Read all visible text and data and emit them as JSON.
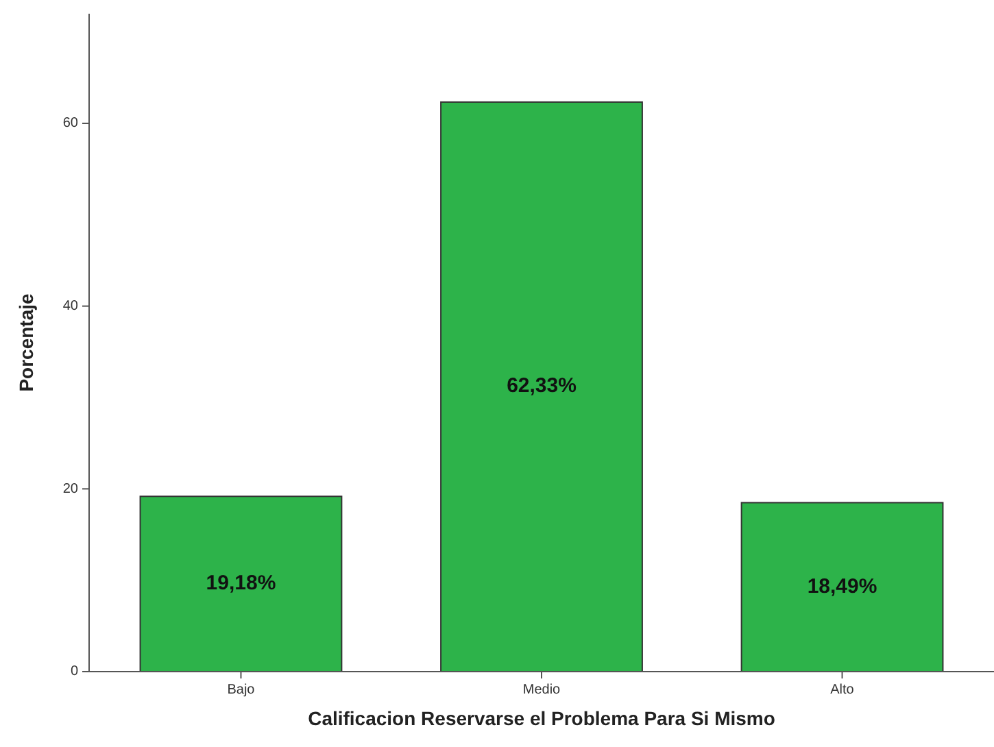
{
  "chart_data": {
    "type": "bar",
    "xlabel": "Calificacion Reservarse el Problema Para Si Mismo",
    "ylabel": "Porcentaje",
    "categories": [
      "Bajo",
      "Medio",
      "Alto"
    ],
    "values": [
      19.18,
      62.33,
      18.49
    ],
    "value_labels": [
      "19,18%",
      "62,33%",
      "18,49%"
    ],
    "color": "#2db34a",
    "ylim": [
      0,
      72
    ],
    "yticks": [
      0,
      20,
      40,
      60
    ],
    "grid": false
  }
}
